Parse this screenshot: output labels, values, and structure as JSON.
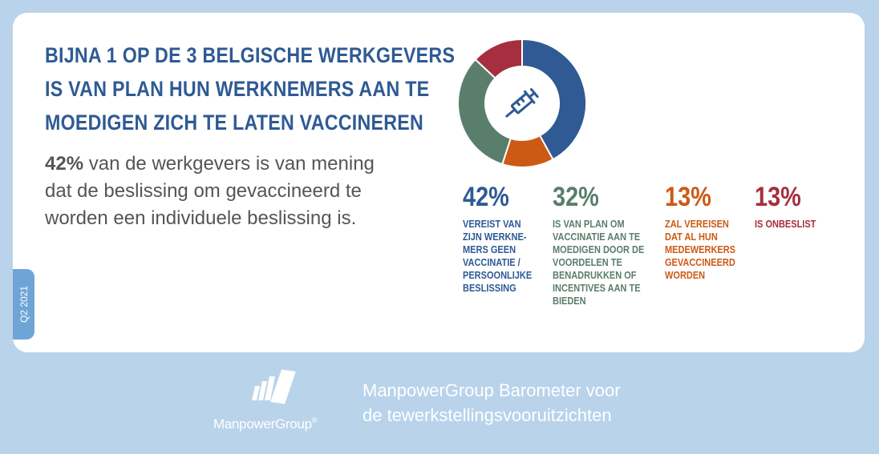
{
  "title_lines": [
    "BIJNA 1 OP DE 3 BELGISCHE WERKGEVERS",
    "IS VAN PLAN HUN WERKNEMERS AAN TE",
    "MOEDIGEN ZICH TE LATEN VACCINEREN"
  ],
  "description": {
    "highlight": "42%",
    "lines": [
      " van de werkgevers is van mening",
      "dat de beslissing om gevaccineerd te",
      "worden een individuele beslissing is."
    ]
  },
  "period": "Q2 2021",
  "icon": "syringe-icon",
  "chart_data": {
    "type": "pie",
    "categories": [
      "VEREIST VAN ZIJN WERKNE-MERS GEEN VACCINATIE / PERSOONLIJKE BESLISSING",
      "ZAL VEREISEN DAT AL HUN MEDEWERKERS GEVACCINEERD WORDEN",
      "IS VAN PLAN OM VACCINATIE AAN TE MOEDIGEN DOOR DE VOORDELEN TE BENADRUKKEN OF INCENTIVES AAN TE BIEDEN",
      "IS ONBESLIST"
    ],
    "values": [
      42,
      13,
      32,
      13
    ],
    "colors": [
      "#2f5a94",
      "#cc5a14",
      "#5a7e6c",
      "#a52f3f"
    ],
    "title": "",
    "legend": "below"
  },
  "stats": [
    {
      "value": "42%",
      "color": "#2f5a94",
      "lines": [
        "VEREIST VAN",
        "ZIJN WERKNE-",
        "MERS GEEN",
        "VACCINATIE /",
        "PERSOONLIJKE",
        "BESLISSING"
      ]
    },
    {
      "value": "32%",
      "color": "#5a7e6c",
      "lines": [
        "IS VAN PLAN OM",
        "VACCINATIE AAN TE",
        "MOEDIGEN DOOR DE",
        "VOORDELEN TE",
        "BENADRUKKEN OF",
        "INCENTIVES AAN TE",
        "BIEDEN"
      ]
    },
    {
      "value": "13%",
      "color": "#cc5a14",
      "lines": [
        "ZAL VEREISEN",
        "DAT AL HUN",
        "MEDEWERKERS",
        "GEVACCINEERD",
        "WORDEN"
      ]
    },
    {
      "value": "13%",
      "color": "#a52f3f",
      "lines": [
        "IS ONBESLIST"
      ]
    }
  ],
  "footer": {
    "logo_name": "ManpowerGroup",
    "logo_mark": "®",
    "text_lines": [
      "ManpowerGroup Barometer voor",
      "de tewerkstellingsvooruitzichten"
    ]
  }
}
